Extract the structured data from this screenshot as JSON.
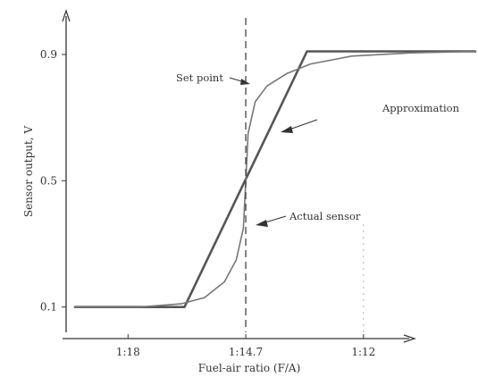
{
  "chart_data": {
    "type": "line",
    "title": "",
    "xlabel": "Fuel-air ratio (F/A)",
    "ylabel": "Sensor output, V",
    "x_ticks": [
      "1:18",
      "1:14.7",
      "1:12"
    ],
    "y_ticks": [
      "0.1",
      "0.5",
      "0.9"
    ],
    "xlim": [
      -1.45,
      1.95
    ],
    "ylim": [
      0.0,
      1.05
    ],
    "grid": false,
    "legend": "none",
    "annotations": {
      "set_point": "Set point",
      "approximation": "Approximation",
      "actual_sensor": "Actual sensor"
    },
    "set_point_x": 0,
    "series": [
      {
        "name": "Approximation",
        "x": [
          -1.45,
          -0.52,
          0.52,
          1.95
        ],
        "y": [
          0.1,
          0.1,
          0.91,
          0.91
        ]
      },
      {
        "name": "Actual sensor",
        "x": [
          -1.45,
          -0.9,
          -0.55,
          -0.35,
          -0.18,
          -0.08,
          -0.02,
          0,
          0.02,
          0.08,
          0.18,
          0.35,
          0.55,
          0.9,
          1.4,
          1.95
        ],
        "y": [
          0.1,
          0.1,
          0.11,
          0.13,
          0.18,
          0.25,
          0.35,
          0.5,
          0.65,
          0.75,
          0.8,
          0.84,
          0.87,
          0.895,
          0.905,
          0.91
        ]
      }
    ]
  }
}
